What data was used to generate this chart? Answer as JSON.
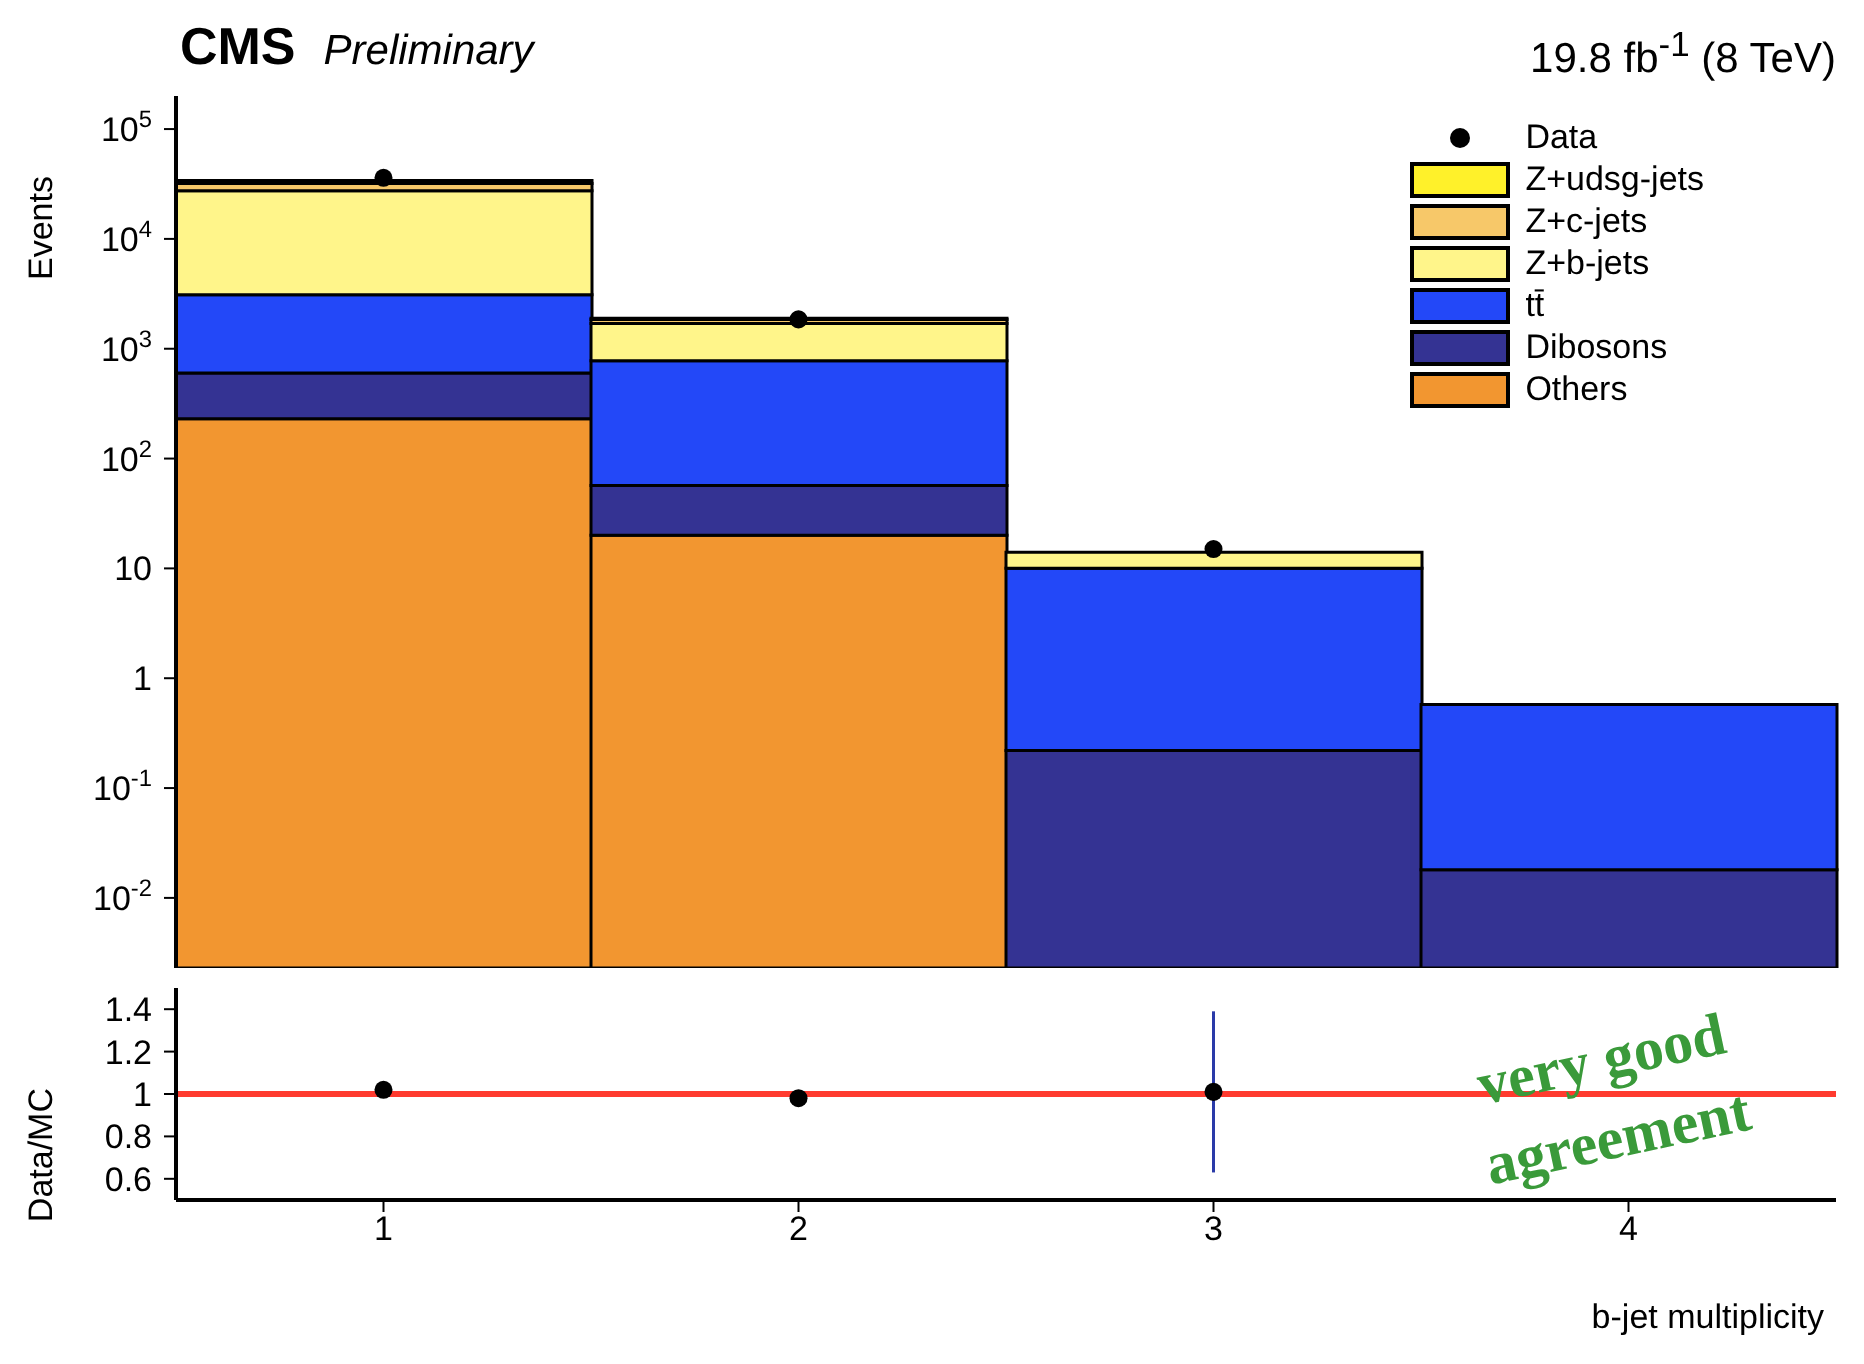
{
  "chart_data": [
    {
      "type": "bar",
      "title": "CMS",
      "subtitle": "Preliminary",
      "ylabel": "Events",
      "stacked": true,
      "log": true,
      "categories": [
        "1",
        "2",
        "3",
        "4"
      ],
      "series": [
        {
          "name": "Others",
          "color": "#f29630",
          "values": [
            230,
            20,
            null,
            null
          ]
        },
        {
          "name": "Dibosons",
          "color": "#343393",
          "values": [
            370,
            37,
            0.22,
            0.018
          ]
        },
        {
          "name": "tt̄",
          "color": "#2348f8",
          "values": [
            2500,
            720,
            9.8,
            0.56
          ]
        },
        {
          "name": "Z+b-jets",
          "color": "#fff58a",
          "values": [
            24400,
            920,
            4,
            null
          ]
        },
        {
          "name": "Z+c-jets",
          "color": "#f7c869",
          "values": [
            4500,
            150,
            null,
            null
          ]
        },
        {
          "name": "Z+udsg-jets",
          "color": "#fff12a",
          "values": [
            2000,
            50,
            null,
            null
          ]
        },
        {
          "name": "Data",
          "type": "scatter",
          "color": "#000000",
          "marker": "circle",
          "values": [
            36000,
            1850,
            15,
            null
          ]
        }
      ],
      "ylim": [
        0.0023,
        200000
      ],
      "yticks": [
        {
          "value": 0.01,
          "label": "10$^{-2}$"
        },
        {
          "value": 0.1,
          "label": "10$^{-1}$"
        },
        1,
        10,
        {
          "value": 100,
          "label": "10$^{2}$"
        },
        {
          "value": 1000,
          "label": "10$^{3}$"
        },
        {
          "value": 10000,
          "label": "10$^{4}$"
        },
        {
          "value": 100000,
          "label": "10$^{5}$"
        }
      ],
      "legend": "top right",
      "tick_labels": "y",
      "annotations": [
        "19.8 fb$^{-1}$ (8 TeV)"
      ]
    },
    {
      "type": "scatter",
      "ylabel": "Data/MC",
      "xlabel": "b-jet multiplicity",
      "categories": [
        "1",
        "2",
        "3",
        "4"
      ],
      "series": [
        {
          "color": "#000000",
          "marker": "circle",
          "values": [
            1.02,
            0.98,
            1.01,
            null
          ],
          "errors": [
            null,
            null,
            0.38,
            null
          ]
        }
      ],
      "ylim": [
        0.5,
        1.5
      ],
      "yticks": [
        0.6,
        0.8,
        1,
        1.2,
        1.4
      ],
      "ref_lines": [
        {
          "axis": "y",
          "value": 1,
          "color": "#ff3b2f"
        }
      ],
      "annotations": [
        "very good agreement"
      ]
    }
  ]
}
